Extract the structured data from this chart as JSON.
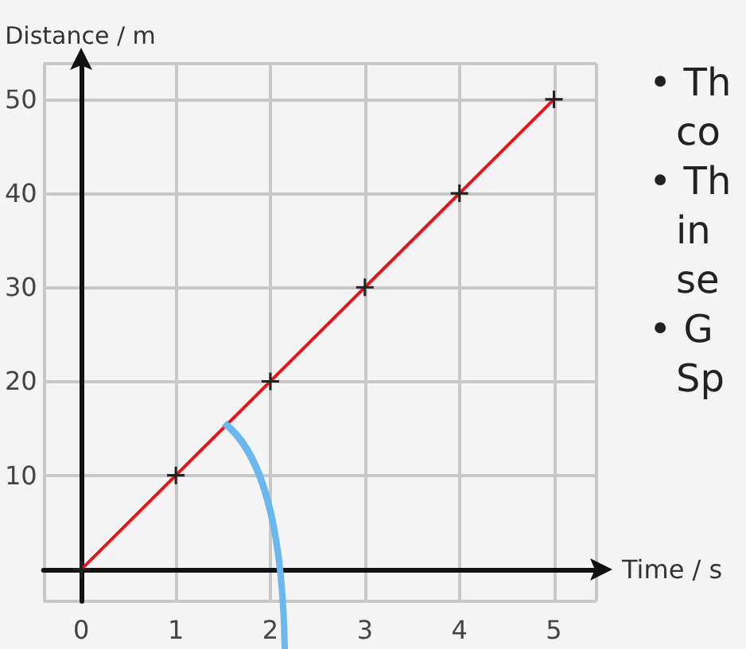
{
  "chart_data": {
    "type": "line",
    "xlabel": "Time / s",
    "ylabel": "Distance / m",
    "x": [
      0,
      1,
      2,
      3,
      4,
      5
    ],
    "series": [
      {
        "color": "#e8141b",
        "values": [
          0,
          10,
          20,
          30,
          40,
          50
        ]
      }
    ],
    "xlim": [
      -0.4,
      5.45
    ],
    "ylim": [
      -3.4,
      53.8
    ],
    "xticks": [
      0,
      1,
      2,
      3,
      4,
      5
    ],
    "yticks": [
      10,
      20,
      30,
      40,
      50
    ],
    "grid": true,
    "marker": "cross",
    "line_style": "solid",
    "annotations": [
      "• Th",
      "co",
      "• Th",
      "in",
      "se",
      "• G",
      "Sp"
    ]
  }
}
